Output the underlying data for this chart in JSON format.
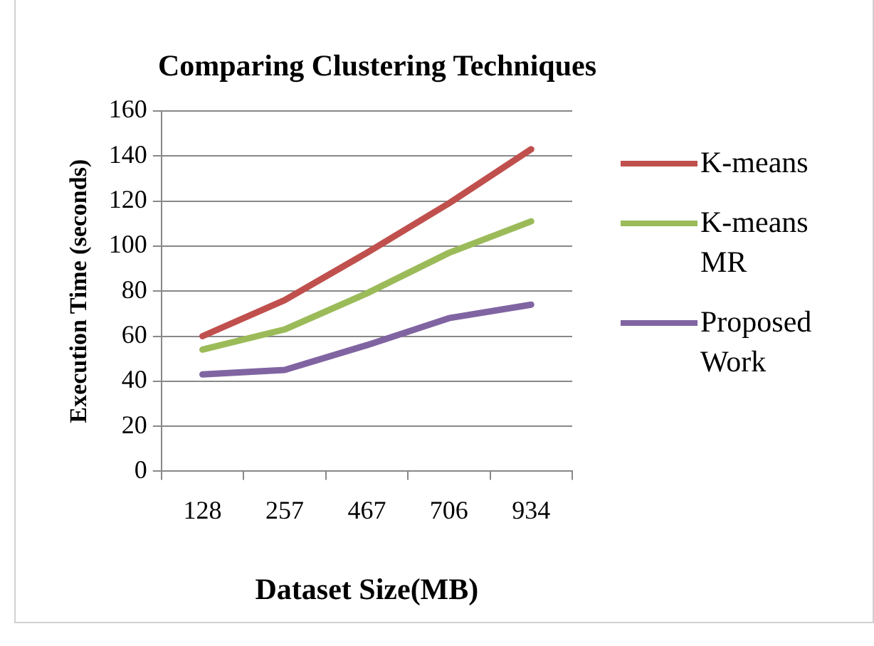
{
  "chart_data": {
    "type": "line",
    "title": "Comparing Clustering Techniques",
    "xlabel": "Dataset Size(MB)",
    "ylabel": "Execution Time (seconds)",
    "categories": [
      "128",
      "257",
      "467",
      "706",
      "934"
    ],
    "series": [
      {
        "name": "K-means",
        "color": "#c0504d",
        "values": [
          60,
          76,
          97,
          119,
          143
        ]
      },
      {
        "name": "K-means MR",
        "color": "#9bbb59",
        "values": [
          54,
          63,
          79,
          97,
          111
        ]
      },
      {
        "name": "Proposed Work",
        "color": "#8064a2",
        "values": [
          43,
          45,
          56,
          68,
          74
        ]
      }
    ],
    "ylim": [
      0,
      160
    ],
    "yticks": [
      0,
      20,
      40,
      60,
      80,
      100,
      120,
      140,
      160
    ],
    "grid": "y",
    "legend": "right",
    "marker": "none",
    "line_style": "solid"
  }
}
